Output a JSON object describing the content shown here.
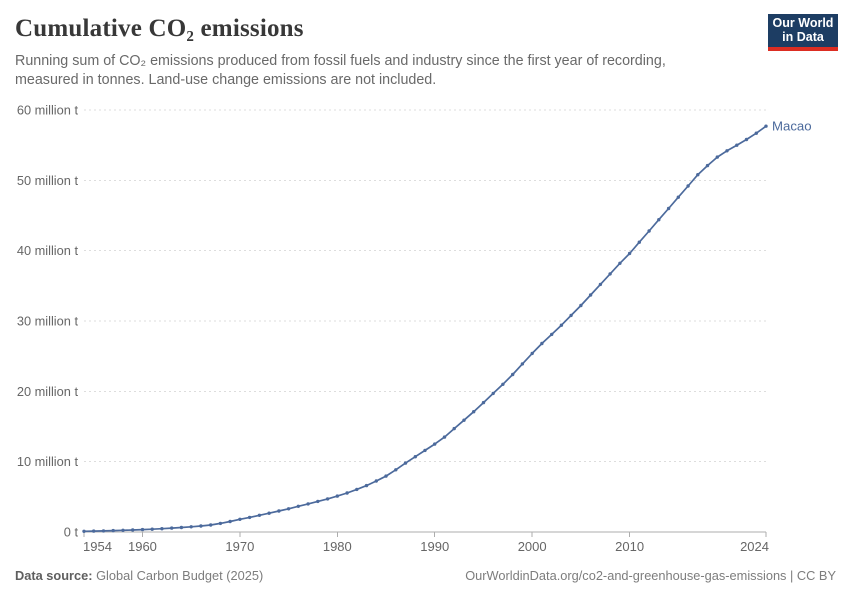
{
  "header": {
    "title": "Cumulative CO₂ emissions",
    "subtitle_lines": [
      "Running sum of CO₂ emissions produced from fossil fuels and industry since the first year of recording,",
      "measured in tonnes. Land-use change emissions are not included."
    ],
    "logo": {
      "line1": "Our World",
      "line2": "in Data",
      "bg": "#1d3d63",
      "accent": "#dc2d22"
    }
  },
  "footer": {
    "source_label": "Data source:",
    "source_value": " Global Carbon Budget (2025)",
    "citation": "OurWorldinData.org/co2-and-greenhouse-gas-emissions | CC BY"
  },
  "colors": {
    "line": "#4C6A9C",
    "grid": "#dddddd",
    "axis": "#adadad",
    "tick_label": "#666666",
    "title": "#383838",
    "subtitle": "#696969",
    "footer": "#7d7d7d"
  },
  "chart_data": {
    "type": "line",
    "title": "Cumulative CO₂ emissions",
    "entity_label": "Macao",
    "unit": "million t",
    "xlim": [
      1954,
      2024
    ],
    "ylim": [
      0,
      60
    ],
    "grid": "horizontal-dashed",
    "legend_position": "end-of-line",
    "x_ticks": [
      1954,
      1960,
      1970,
      1980,
      1990,
      2000,
      2010,
      2024
    ],
    "y_ticks": [
      {
        "value": 0,
        "label": "0 t"
      },
      {
        "value": 10,
        "label": "10 million t"
      },
      {
        "value": 20,
        "label": "20 million t"
      },
      {
        "value": 30,
        "label": "30 million t"
      },
      {
        "value": 40,
        "label": "40 million t"
      },
      {
        "value": 50,
        "label": "50 million t"
      },
      {
        "value": 60,
        "label": "60 million t"
      }
    ],
    "years": [
      1954,
      1955,
      1956,
      1957,
      1958,
      1959,
      1960,
      1961,
      1962,
      1963,
      1964,
      1965,
      1966,
      1967,
      1968,
      1969,
      1970,
      1971,
      1972,
      1973,
      1974,
      1975,
      1976,
      1977,
      1978,
      1979,
      1980,
      1981,
      1982,
      1983,
      1984,
      1985,
      1986,
      1987,
      1988,
      1989,
      1990,
      1991,
      1992,
      1993,
      1994,
      1995,
      1996,
      1997,
      1998,
      1999,
      2000,
      2001,
      2002,
      2003,
      2004,
      2005,
      2006,
      2007,
      2008,
      2009,
      2010,
      2011,
      2012,
      2013,
      2014,
      2015,
      2016,
      2017,
      2018,
      2019,
      2020,
      2021,
      2022,
      2023,
      2024
    ],
    "values": [
      0.1,
      0.13,
      0.16,
      0.2,
      0.24,
      0.29,
      0.34,
      0.4,
      0.47,
      0.55,
      0.64,
      0.74,
      0.86,
      1.0,
      1.22,
      1.5,
      1.8,
      2.08,
      2.37,
      2.67,
      2.98,
      3.3,
      3.65,
      4.0,
      4.35,
      4.7,
      5.1,
      5.55,
      6.05,
      6.6,
      7.25,
      7.95,
      8.85,
      9.8,
      10.7,
      11.6,
      12.5,
      13.5,
      14.7,
      15.9,
      17.1,
      18.4,
      19.7,
      21.0,
      22.4,
      23.9,
      25.4,
      26.8,
      28.1,
      29.4,
      30.8,
      32.2,
      33.7,
      35.2,
      36.7,
      38.2,
      39.6,
      41.2,
      42.8,
      44.4,
      46.0,
      47.6,
      49.2,
      50.8,
      52.1,
      53.3,
      54.2,
      55.0,
      55.8,
      56.7,
      57.7
    ],
    "series": [
      {
        "name": "Macao",
        "color": "#4C6A9C"
      }
    ]
  }
}
